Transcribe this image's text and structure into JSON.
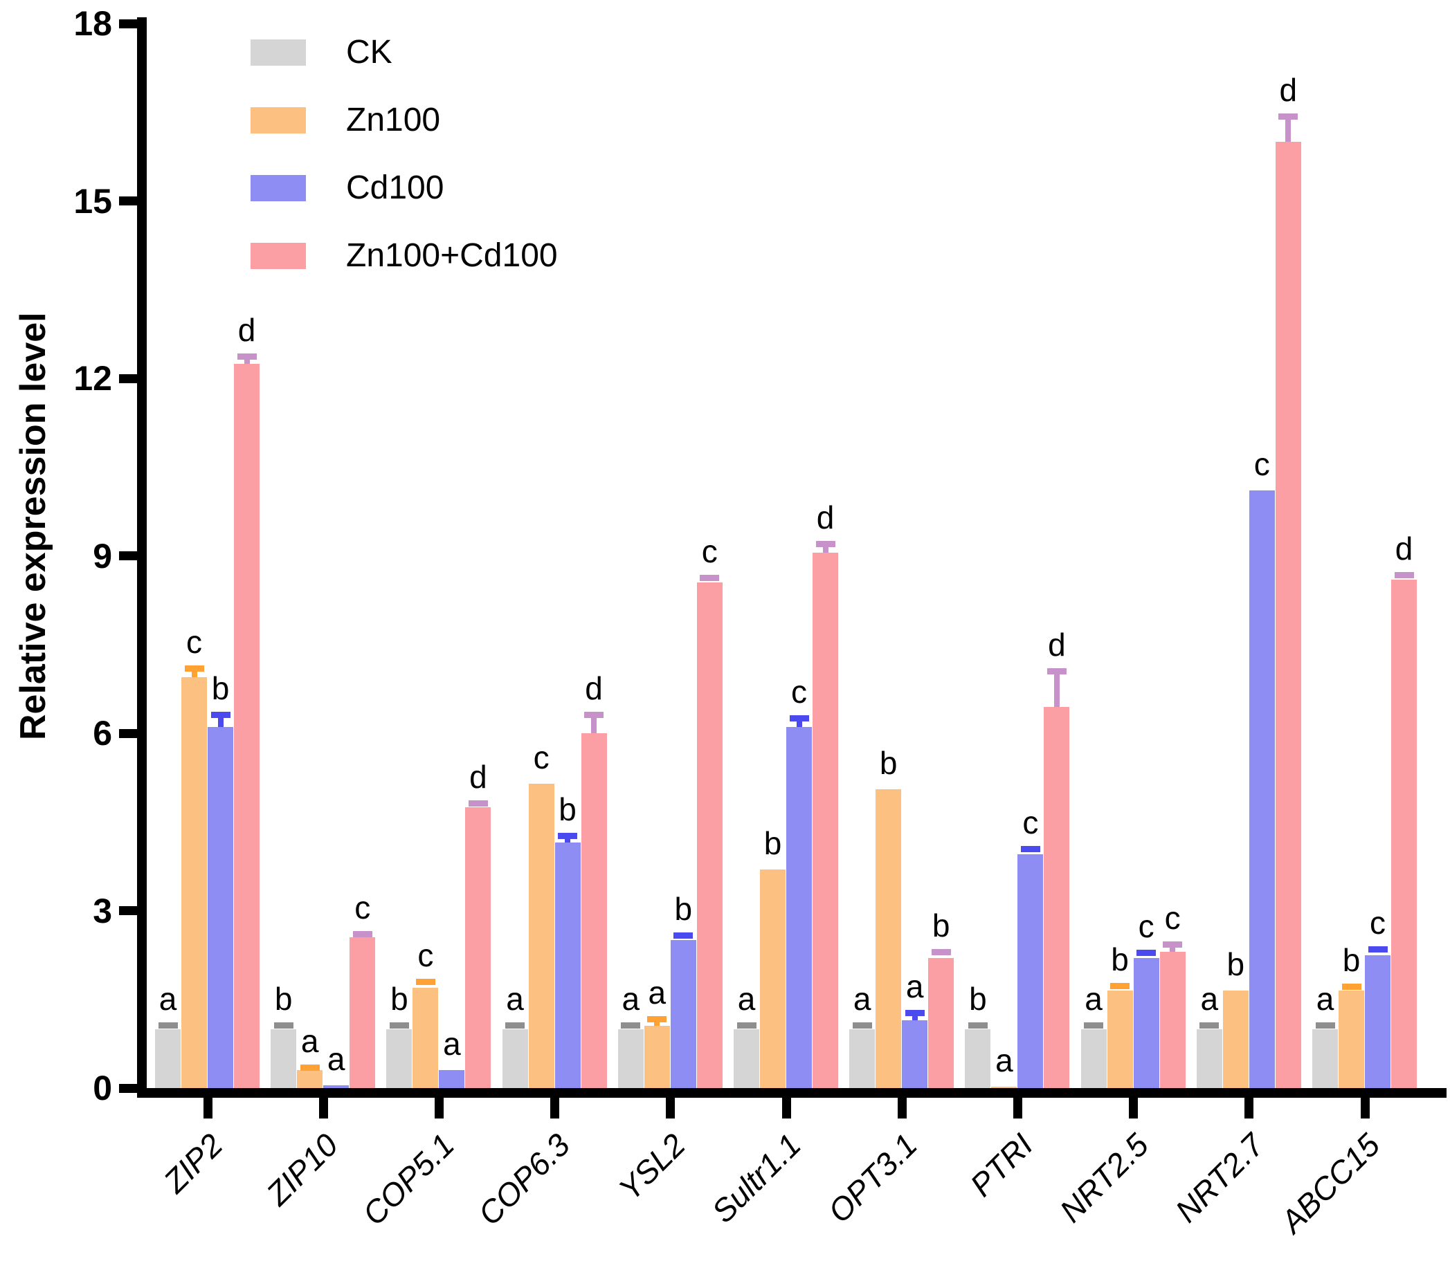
{
  "chart_data": {
    "type": "bar",
    "title": "",
    "ylabel": "Relative expression level",
    "xlabel": "",
    "ylim": [
      0,
      18
    ],
    "yticks": [
      0,
      3,
      6,
      9,
      12,
      15,
      18
    ],
    "grid": false,
    "legend_position": "top-left-inside",
    "categories": [
      "ZIP2",
      "ZIP10",
      "COP5.1",
      "COP6.3",
      "YSL2",
      "Sultr1.1",
      "OPT3.1",
      "PTRI",
      "NRT2.5",
      "NRT2.7",
      "ABCC15"
    ],
    "series": [
      {
        "name": "CK",
        "color": "#d5d5d5",
        "err_color": "#8e8e8e",
        "values": [
          1.0,
          1.0,
          1.0,
          1.0,
          1.0,
          1.0,
          1.0,
          1.0,
          1.0,
          1.0,
          1.0
        ],
        "errors": [
          0.06,
          0.06,
          0.06,
          0.06,
          0.06,
          0.06,
          0.06,
          0.06,
          0.06,
          0.06,
          0.06
        ],
        "letters": [
          "a",
          "b",
          "b",
          "a",
          "a",
          "a",
          "a",
          "b",
          "a",
          "a",
          "a"
        ]
      },
      {
        "name": "Zn100",
        "color": "#fcc180",
        "err_color": "#ffa133",
        "values": [
          6.95,
          0.3,
          1.7,
          5.15,
          1.05,
          3.7,
          5.05,
          0.02,
          1.65,
          1.65,
          1.65
        ],
        "errors": [
          0.15,
          0.05,
          0.1,
          0,
          0.12,
          0,
          0,
          0,
          0.08,
          0,
          0.07
        ],
        "letters": [
          "c",
          "a",
          "c",
          "c",
          "a",
          "b",
          "b",
          "a",
          "b",
          "b",
          "b"
        ]
      },
      {
        "name": "Cd100",
        "color": "#8d8df4",
        "err_color": "#4a4aee",
        "values": [
          6.1,
          0.05,
          0.3,
          4.15,
          2.5,
          6.1,
          1.15,
          3.95,
          2.2,
          10.1,
          2.25
        ],
        "errors": [
          0.22,
          0,
          0,
          0.12,
          0.08,
          0.16,
          0.12,
          0.1,
          0.09,
          0,
          0.1
        ],
        "letters": [
          "b",
          "a",
          "a",
          "b",
          "b",
          "c",
          "a",
          "c",
          "c",
          "c",
          "c"
        ]
      },
      {
        "name": "Zn100+Cd100",
        "color": "#fb9fa5",
        "err_color": "#c792c9",
        "values": [
          12.25,
          2.55,
          4.75,
          6.0,
          8.55,
          9.05,
          2.2,
          6.45,
          2.3,
          16.0,
          8.6
        ],
        "errors": [
          0.12,
          0.06,
          0.07,
          0.32,
          0.08,
          0.16,
          0.1,
          0.6,
          0.13,
          0.43,
          0.08
        ],
        "letters": [
          "d",
          "c",
          "d",
          "d",
          "c",
          "d",
          "b",
          "d",
          "c",
          "d",
          "d"
        ]
      }
    ]
  }
}
